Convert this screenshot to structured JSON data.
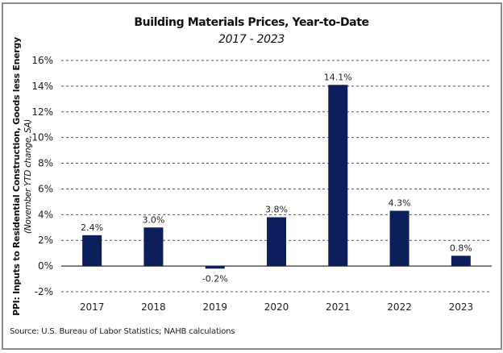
{
  "chart_data": {
    "type": "bar",
    "title": "Building Materials Prices, Year-to-Date",
    "subtitle": "2017 - 2023",
    "categories": [
      "2017",
      "2018",
      "2019",
      "2020",
      "2021",
      "2022",
      "2023"
    ],
    "values": [
      2.4,
      3.0,
      -0.2,
      3.8,
      14.1,
      4.3,
      0.8
    ],
    "data_labels": [
      "2.4%",
      "3.0%",
      "-0.2%",
      "3.8%",
      "14.1%",
      "4.3%",
      "0.8%"
    ],
    "xlabel": "",
    "ylabel": "PPI: Inputs to Residential Construction, Goods less Energy",
    "ylabel_sub": "(November YTD change, SA)",
    "ylim": [
      -2,
      16
    ],
    "yticks": [
      -2,
      0,
      2,
      4,
      6,
      8,
      10,
      12,
      14,
      16
    ],
    "ytick_labels": [
      "-2%",
      "0%",
      "2%",
      "4%",
      "6%",
      "8%",
      "10%",
      "12%",
      "14%",
      "16%"
    ],
    "grid": true,
    "grid_style": "dashed",
    "bar_color": "#0c1f5a",
    "legend": "none"
  },
  "source": "Source: U.S. Bureau of Labor Statistics; NAHB calculations"
}
